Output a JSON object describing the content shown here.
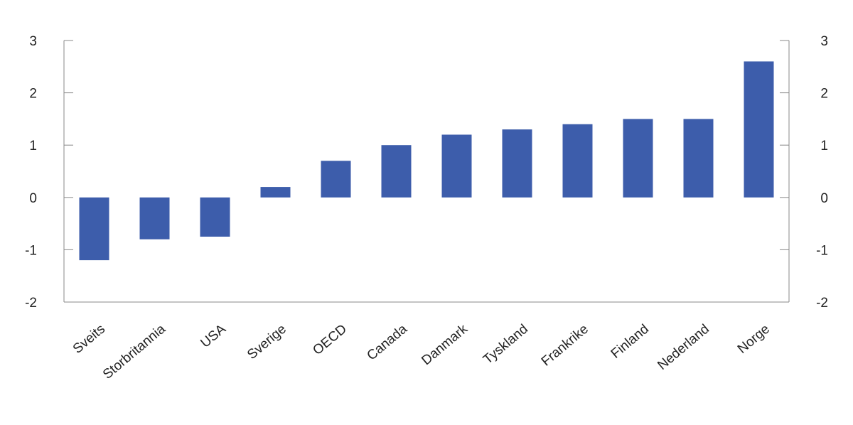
{
  "chart_data": {
    "type": "bar",
    "categories": [
      "Sveits",
      "Storbritannia",
      "USA",
      "Sverige",
      "OECD",
      "Canada",
      "Danmark",
      "Tyskland",
      "Frankrike",
      "Finland",
      "Nederland",
      "Norge"
    ],
    "values": [
      -1.2,
      -0.8,
      -0.75,
      0.2,
      0.7,
      1.0,
      1.2,
      1.3,
      1.4,
      1.5,
      1.5,
      2.6
    ],
    "ylim": [
      -2,
      3
    ],
    "yticks": [
      3,
      2,
      1,
      0,
      -1,
      -2
    ],
    "ytick_labels": [
      "3",
      "2",
      "1",
      "0",
      "-1",
      "-2"
    ],
    "bar_color": "#3d5dab",
    "grid": false,
    "dual_y_axis": true
  }
}
